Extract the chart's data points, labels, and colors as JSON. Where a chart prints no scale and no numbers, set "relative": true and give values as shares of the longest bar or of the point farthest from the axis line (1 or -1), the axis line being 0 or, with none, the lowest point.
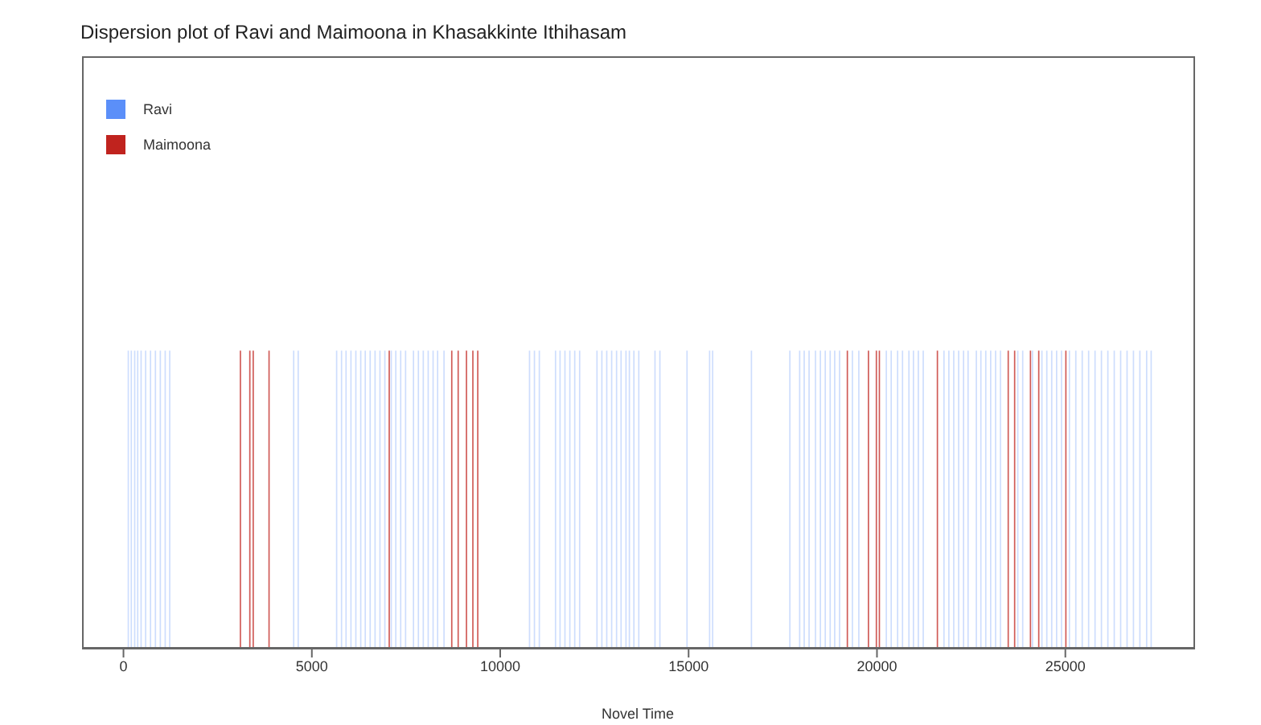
{
  "chart_data": {
    "type": "bar",
    "title": "Dispersion plot of Ravi and Maimoona in Khasakkinte Ithihasam",
    "xlabel": "Novel Time",
    "relative": true,
    "xlim": [
      -1100,
      28400
    ],
    "xticks": [
      0,
      5000,
      10000,
      15000,
      20000,
      25000
    ],
    "legend": "top left",
    "grid": false,
    "series": [
      {
        "name": "Ravi",
        "color": "#5b8ff9",
        "x": [
          150,
          230,
          320,
          400,
          490,
          610,
          740,
          870,
          1000,
          1130,
          1250,
          4540,
          4660,
          5680,
          5810,
          5930,
          6060,
          6190,
          6320,
          6440,
          6570,
          6700,
          6830,
          6960,
          7130,
          7250,
          7380,
          7510,
          7720,
          7850,
          7980,
          8110,
          8240,
          8360,
          8530,
          10800,
          10930,
          11060,
          11490,
          11610,
          11740,
          11870,
          12000,
          12130,
          12590,
          12720,
          12850,
          12980,
          13110,
          13230,
          13360,
          13450,
          13570,
          13700,
          14130,
          14260,
          14980,
          15580,
          15660,
          16690,
          17710,
          17970,
          18090,
          18220,
          18390,
          18520,
          18650,
          18780,
          18900,
          19030,
          19370,
          19540,
          20270,
          20400,
          20570,
          20700,
          20870,
          20990,
          21120,
          21250,
          21800,
          21930,
          22060,
          22190,
          22320,
          22440,
          22660,
          22780,
          22910,
          23040,
          23170,
          23300,
          23760,
          23890,
          24150,
          24400,
          24530,
          24660,
          24790,
          24920,
          25130,
          25300,
          25470,
          25640,
          25810,
          25980,
          26150,
          26320,
          26490,
          26660,
          26830,
          27000,
          27180,
          27300
        ],
        "values": [
          1,
          1,
          1,
          1,
          1,
          1,
          1,
          1,
          1,
          1,
          1,
          1,
          1,
          1,
          1,
          1,
          1,
          1,
          1,
          1,
          1,
          1,
          1,
          1,
          1,
          1,
          1,
          1,
          1,
          1,
          1,
          1,
          1,
          1,
          1,
          1,
          1,
          1,
          1,
          1,
          1,
          1,
          1,
          1,
          1,
          1,
          1,
          1,
          1,
          1,
          1,
          1,
          1,
          1,
          1,
          1,
          1,
          1,
          1,
          1,
          1,
          1,
          1,
          1,
          1,
          1,
          1,
          1,
          1,
          1,
          1,
          1,
          1,
          1,
          1,
          1,
          1,
          1,
          1,
          1,
          1,
          1,
          1,
          1,
          1,
          1,
          1,
          1,
          1,
          1,
          1,
          1,
          1,
          1,
          1,
          1,
          1,
          1,
          1,
          1,
          1,
          1,
          1,
          1,
          1,
          1,
          1,
          1,
          1,
          1,
          1,
          1,
          1,
          1
        ]
      },
      {
        "name": "Maimoona",
        "color": "#c0231e",
        "x": [
          3090,
          3340,
          3430,
          3850,
          7040,
          8700,
          8870,
          9090,
          9260,
          9390,
          19200,
          19760,
          19970,
          20050,
          21590,
          23470,
          23640,
          24060,
          24280,
          25000
        ],
        "values": [
          1,
          1,
          1,
          1,
          1,
          1,
          1,
          1,
          1,
          1,
          1,
          1,
          1,
          1,
          1,
          1,
          1,
          1,
          1,
          1
        ]
      }
    ]
  }
}
